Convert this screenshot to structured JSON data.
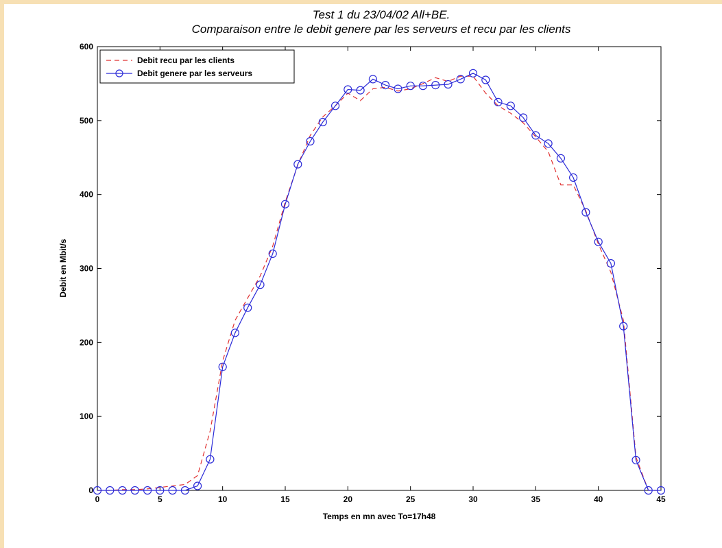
{
  "chart_data": {
    "type": "line",
    "title": "Test 1 du 23/04/02 All+BE.",
    "subtitle": "Comparaison entre le debit genere par les serveurs et recu par les clients",
    "xlabel": "Temps en mn avec To=17h48",
    "ylabel": "Debit en Mbit/s",
    "xlim": [
      0,
      45
    ],
    "ylim": [
      0,
      600
    ],
    "x_ticks": [
      "0",
      "5",
      "10",
      "15",
      "20",
      "25",
      "30",
      "35",
      "40",
      "45"
    ],
    "y_ticks": [
      "0",
      "100",
      "200",
      "300",
      "400",
      "500",
      "600"
    ],
    "grid": false,
    "legend_position": "top-left",
    "series": [
      {
        "name": "Debit recu par les clients",
        "style": "dashed",
        "color": "#e03030",
        "x": [
          0,
          1,
          2,
          3,
          4,
          5,
          6,
          7,
          8,
          9,
          10,
          11,
          12,
          13,
          14,
          15,
          16,
          17,
          18,
          19,
          20,
          21,
          22,
          23,
          24,
          25,
          26,
          27,
          28,
          29,
          30,
          31,
          32,
          33,
          34,
          35,
          36,
          37,
          38,
          39,
          40,
          41,
          42,
          43,
          44,
          45
        ],
        "y": [
          0,
          0,
          1,
          1,
          2,
          4,
          6,
          8,
          20,
          80,
          175,
          230,
          260,
          290,
          330,
          390,
          440,
          480,
          505,
          520,
          537,
          527,
          543,
          545,
          540,
          543,
          550,
          558,
          553,
          560,
          560,
          537,
          520,
          510,
          497,
          478,
          458,
          413,
          413,
          378,
          333,
          295,
          230,
          45,
          0,
          0
        ]
      },
      {
        "name": "Debit genere par les serveurs",
        "style": "solid-circles",
        "color": "#2b2bd8",
        "x": [
          0,
          1,
          2,
          3,
          4,
          5,
          6,
          7,
          8,
          9,
          10,
          11,
          12,
          13,
          14,
          15,
          16,
          17,
          18,
          19,
          20,
          21,
          22,
          23,
          24,
          25,
          26,
          27,
          28,
          29,
          30,
          31,
          32,
          33,
          34,
          35,
          36,
          37,
          38,
          39,
          40,
          41,
          42,
          43,
          44,
          45
        ],
        "y": [
          0,
          0,
          0,
          0,
          0,
          0,
          0,
          0,
          6,
          42,
          167,
          213,
          247,
          278,
          320,
          387,
          441,
          472,
          498,
          520,
          542,
          541,
          556,
          548,
          543,
          547,
          547,
          548,
          549,
          556,
          564,
          555,
          525,
          520,
          504,
          480,
          469,
          449,
          423,
          376,
          336,
          307,
          222,
          41,
          0,
          0
        ]
      }
    ]
  }
}
